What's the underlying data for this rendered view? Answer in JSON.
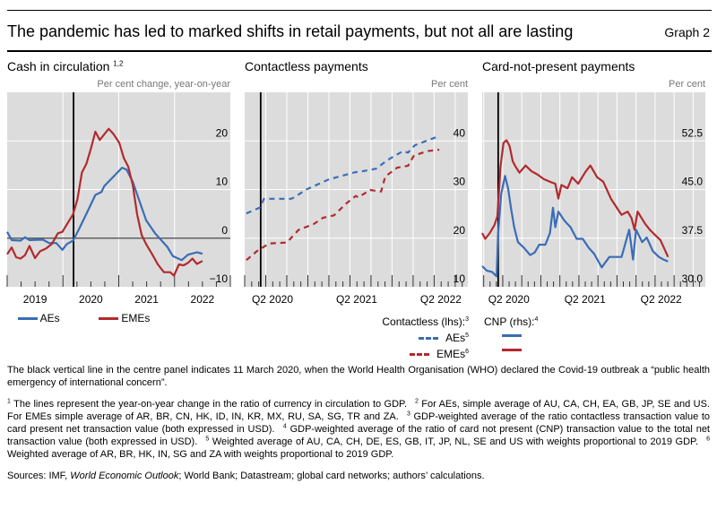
{
  "header": {
    "title": "The pandemic has led to marked shifts in retail payments, but not all are lasting",
    "graph_label": "Graph 2"
  },
  "colors": {
    "blue": "#3a6db5",
    "red": "#b22a2e",
    "plot_bg": "#dcdcdc",
    "grid": "#ffffff",
    "event_line": "#000000"
  },
  "chart_data": [
    {
      "type": "line",
      "title": "Cash in circulation",
      "title_footnotes": "1,2",
      "unit": "Per cent change, year-on-year",
      "xlim": [
        2019.0,
        2023.0
      ],
      "ylim": [
        -10,
        30
      ],
      "yticks": [
        -10,
        0,
        10,
        20
      ],
      "ytick_labels": [
        "−10",
        "0",
        "10",
        "20"
      ],
      "xtick_labels": [
        {
          "x": 2019.5,
          "label": "2019"
        },
        {
          "x": 2020.5,
          "label": "2020"
        },
        {
          "x": 2021.5,
          "label": "2021"
        },
        {
          "x": 2022.5,
          "label": "2022"
        }
      ],
      "event_line_x": 2020.19,
      "zero_line": true,
      "grid": true,
      "series": [
        {
          "name": "AEs",
          "style": "solid",
          "color": "#3a6db5",
          "x": [
            2019.0,
            2019.08,
            2019.24,
            2019.32,
            2019.4,
            2019.64,
            2019.75,
            2019.88,
            2019.99,
            2020.07,
            2020.18,
            2020.29,
            2020.47,
            2020.58,
            2020.69,
            2020.74,
            2020.9,
            2021.06,
            2021.14,
            2021.25,
            2021.36,
            2021.49,
            2021.65,
            2021.87,
            2021.97,
            2022.13,
            2022.24,
            2022.4,
            2022.5
          ],
          "y": [
            1.3,
            -0.4,
            -0.5,
            0.2,
            -0.4,
            -0.3,
            -1.0,
            -1.0,
            -2.4,
            -1.2,
            -0.5,
            1.9,
            6.2,
            8.9,
            9.5,
            10.7,
            12.6,
            14.5,
            14.1,
            11.6,
            8.0,
            3.7,
            1.0,
            -1.8,
            -3.7,
            -4.5,
            -3.4,
            -2.9,
            -3.2
          ]
        },
        {
          "name": "EMEs",
          "style": "solid",
          "color": "#b22a2e",
          "x": [
            2019.0,
            2019.08,
            2019.16,
            2019.24,
            2019.32,
            2019.4,
            2019.5,
            2019.59,
            2019.7,
            2019.8,
            2019.91,
            2019.99,
            2020.1,
            2020.18,
            2020.26,
            2020.34,
            2020.42,
            2020.5,
            2020.58,
            2020.66,
            2020.82,
            2020.9,
            2021.01,
            2021.09,
            2021.17,
            2021.25,
            2021.33,
            2021.41,
            2021.49,
            2021.6,
            2021.7,
            2021.81,
            2021.92,
            2021.99,
            2022.08,
            2022.16,
            2022.24,
            2022.32,
            2022.4,
            2022.5
          ],
          "y": [
            -3.3,
            -1.9,
            -3.9,
            -4.2,
            -3.5,
            -1.6,
            -4.1,
            -2.7,
            -2.1,
            -1.2,
            1.0,
            1.3,
            3.4,
            4.9,
            8.0,
            13.5,
            15.3,
            18.4,
            21.9,
            20.2,
            22.5,
            21.5,
            19.6,
            16.5,
            14.7,
            11.0,
            4.9,
            0.7,
            -1.2,
            -3.3,
            -5.4,
            -7.0,
            -7.0,
            -7.7,
            -5.4,
            -5.6,
            -5.1,
            -4.2,
            -5.3,
            -4.7
          ]
        }
      ],
      "legend": {
        "placement": "bottom",
        "items": [
          "AEs",
          "EMEs"
        ]
      }
    },
    {
      "type": "line",
      "title": "Contactless payments",
      "unit": "Per cent",
      "xlim": [
        2020.0,
        2022.65
      ],
      "ylim": [
        10,
        50
      ],
      "yticks": [
        10,
        20,
        30,
        40
      ],
      "ytick_labels": [
        "10",
        "20",
        "30",
        "40"
      ],
      "xtick_labels": [
        {
          "x": 2020.33,
          "label": "Q2 2020"
        },
        {
          "x": 2021.33,
          "label": "Q2 2021"
        },
        {
          "x": 2022.33,
          "label": "Q2 2022"
        }
      ],
      "event_line_x": 2020.19,
      "grid": true,
      "series": [
        {
          "name": "AEs",
          "footnote": "5",
          "style": "dashed",
          "color": "#3a6db5",
          "x": [
            2020.02,
            2020.18,
            2020.23,
            2020.55,
            2020.59,
            2020.73,
            2021.0,
            2021.32,
            2021.35,
            2021.56,
            2021.7,
            2021.88,
            2021.94,
            2022.02,
            2022.17,
            2022.31
          ],
          "y": [
            25.1,
            26.3,
            28.1,
            28.1,
            28.4,
            30.0,
            32.1,
            33.6,
            33.6,
            34.3,
            36.1,
            37.9,
            37.6,
            39.1,
            40.1,
            41.0
          ]
        },
        {
          "name": "EMEs",
          "footnote": "6",
          "style": "dashed",
          "color": "#b22a2e",
          "x": [
            2020.02,
            2020.15,
            2020.29,
            2020.5,
            2020.64,
            2020.82,
            2020.93,
            2021.06,
            2021.21,
            2021.32,
            2021.35,
            2021.49,
            2021.62,
            2021.67,
            2021.81,
            2021.94,
            2022.01,
            2022.17,
            2022.31
          ],
          "y": [
            15.5,
            17.4,
            18.9,
            19.1,
            21.7,
            22.9,
            24.2,
            24.7,
            27.2,
            28.7,
            28.4,
            29.9,
            29.6,
            32.7,
            34.5,
            34.9,
            37.0,
            37.9,
            38.2
          ]
        }
      ],
      "legend": {
        "placement": "bottom",
        "heading": "Contactless (lhs):",
        "heading_footnote": "3",
        "items": [
          "AEs",
          "EMEs"
        ]
      }
    },
    {
      "type": "line",
      "title": "Card-not-present payments",
      "unit": "Per cent",
      "xlim": [
        2019.98,
        2022.91
      ],
      "ylim": [
        30,
        60
      ],
      "yticks": [
        30,
        37.5,
        45,
        52.5
      ],
      "ytick_labels": [
        "30.0",
        "37.5",
        "45.0",
        "52.5"
      ],
      "xtick_labels": [
        {
          "x": 2020.33,
          "label": "Q2 2020"
        },
        {
          "x": 2021.33,
          "label": "Q2 2021"
        },
        {
          "x": 2022.33,
          "label": "Q2 2022"
        }
      ],
      "event_line_x": 2020.19,
      "grid": true,
      "series": [
        {
          "name": "AEs",
          "style": "solid",
          "color": "#3a6db5",
          "x": [
            2019.98,
            2020.04,
            2020.11,
            2020.17,
            2020.19,
            2020.23,
            2020.28,
            2020.32,
            2020.36,
            2020.4,
            2020.45,
            2020.53,
            2020.61,
            2020.67,
            2020.73,
            2020.81,
            2020.87,
            2020.91,
            2020.94,
            2020.98,
            2021.06,
            2021.14,
            2021.22,
            2021.3,
            2021.38,
            2021.45,
            2021.55,
            2021.65,
            2021.73,
            2021.81,
            2021.91,
            2021.96,
            2022.0,
            2022.08,
            2022.14,
            2022.22,
            2022.3,
            2022.36,
            2022.42
          ],
          "y": [
            33.2,
            32.5,
            32.3,
            31.6,
            38.3,
            44.3,
            47.1,
            45.2,
            42.0,
            39.2,
            36.9,
            36.0,
            34.9,
            35.3,
            36.5,
            36.5,
            38.3,
            42.2,
            39.2,
            41.6,
            40.2,
            39.2,
            37.4,
            37.4,
            36.0,
            35.1,
            33.0,
            34.6,
            34.6,
            34.6,
            38.8,
            34.2,
            38.8,
            36.9,
            37.6,
            35.5,
            34.6,
            34.2,
            33.9
          ]
        },
        {
          "name": "EMEs",
          "style": "solid",
          "color": "#b22a2e",
          "x": [
            2019.98,
            2020.02,
            2020.08,
            2020.14,
            2020.18,
            2020.22,
            2020.26,
            2020.3,
            2020.34,
            2020.38,
            2020.42,
            2020.47,
            2020.55,
            2020.63,
            2020.71,
            2020.79,
            2020.87,
            2020.94,
            2020.98,
            2021.02,
            2021.1,
            2021.16,
            2021.24,
            2021.34,
            2021.4,
            2021.49,
            2021.57,
            2021.67,
            2021.77,
            2021.81,
            2021.89,
            2021.94,
            2021.98,
            2022.02,
            2022.12,
            2022.18,
            2022.24,
            2022.32,
            2022.42
          ],
          "y": [
            38.3,
            37.4,
            38.3,
            39.5,
            40.9,
            48.5,
            52.2,
            52.6,
            51.7,
            49.4,
            48.5,
            47.6,
            48.7,
            47.8,
            47.3,
            46.6,
            46.2,
            45.9,
            43.6,
            45.7,
            45.2,
            46.9,
            45.9,
            47.8,
            48.7,
            46.9,
            46.2,
            43.6,
            41.8,
            41.1,
            41.6,
            40.6,
            38.8,
            41.6,
            39.7,
            38.8,
            38.1,
            37.2,
            34.6
          ]
        }
      ],
      "legend": {
        "placement": "bottom",
        "heading": "CNP (rhs):",
        "heading_footnote": "4"
      }
    }
  ],
  "notes": {
    "main": "The black vertical line in the centre panel indicates 11 March 2020, when the World Health Organisation (WHO) declared the Covid-19 outbreak a “public health emergency of international concern”.",
    "footnotes": [
      {
        "num": "1",
        "text": "The lines represent the year-on-year change in the ratio of currency in circulation to GDP."
      },
      {
        "num": "2",
        "text": "For AEs, simple average of AU, CA, CH, EA, GB, JP, SE and US. For EMEs simple average of AR, BR, CN, HK, ID, IN, KR, MX, RU, SA, SG, TR and ZA."
      },
      {
        "num": "3",
        "text": "GDP-weighted average of the ratio contactless transaction value to card present net transaction value (both expressed in USD)."
      },
      {
        "num": "4",
        "text": "GDP-weighted average of the ratio of card not present (CNP) transaction value to the total net transaction value (both expressed in USD)."
      },
      {
        "num": "5",
        "text": "Weighted average of AU, CA, CH, DE, ES, GB, IT, JP, NL, SE and US with weights proportional to 2019 GDP."
      },
      {
        "num": "6",
        "text": "Weighted average of AR, BR, HK, IN, SG and ZA with weights proportional to 2019 GDP."
      }
    ],
    "sources_prefix": "Sources: IMF, ",
    "sources_italic": "World Economic Outlook",
    "sources_suffix": "; World Bank; Datastream; global card networks; authors’ calculations."
  }
}
